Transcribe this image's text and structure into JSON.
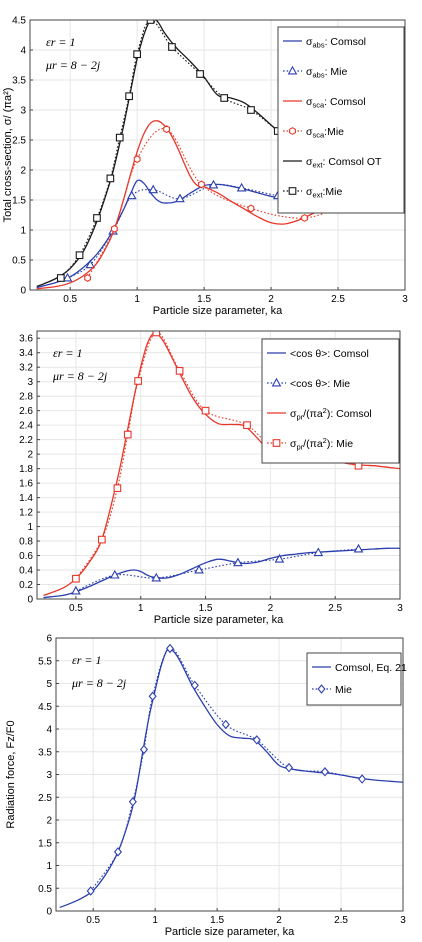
{
  "colors": {
    "black": "#1a1a1a",
    "blue": "#2b3fae",
    "red": "#e8372a",
    "grid": "#e6e6e6",
    "frame": "#444444"
  },
  "chart_data": [
    {
      "type": "line",
      "xlabel": "Particle size parameter, ka",
      "ylabel": "Total cross-section, σ/ (πa²)",
      "xlim": [
        0.2,
        3.0
      ],
      "ylim": [
        0,
        4.5
      ],
      "xticks": [
        "0.5",
        "1",
        "1.5",
        "2",
        "2.5",
        "3"
      ],
      "yticks": [
        "0",
        "0.5",
        "1",
        "1.5",
        "2",
        "2.5",
        "3",
        "3.5",
        "4",
        "4.5"
      ],
      "grid": true,
      "legend_position": "top-right",
      "annotations": [
        "εr = 1",
        "μr = 8 − 2j"
      ],
      "series": [
        {
          "name": "σabs: Comsol",
          "color": "blue",
          "style": "solid",
          "marker": "none",
          "x": [
            0.25,
            0.4,
            0.5,
            0.6,
            0.7,
            0.8,
            0.9,
            0.95,
            1.0,
            1.05,
            1.1,
            1.15,
            1.2,
            1.3,
            1.4,
            1.5,
            1.6,
            1.7,
            1.8,
            1.9,
            2.0,
            2.1,
            2.2,
            2.3,
            2.4,
            2.5,
            2.6,
            2.7,
            2.8,
            2.9,
            3.0
          ],
          "y": [
            0.04,
            0.13,
            0.22,
            0.38,
            0.6,
            0.92,
            1.35,
            1.6,
            1.82,
            1.78,
            1.62,
            1.5,
            1.45,
            1.48,
            1.62,
            1.74,
            1.76,
            1.73,
            1.68,
            1.62,
            1.56,
            1.52,
            1.49,
            1.46,
            1.44,
            1.41,
            1.39,
            1.37,
            1.36,
            1.35,
            1.34
          ]
        },
        {
          "name": "σabs: Mie",
          "color": "blue",
          "style": "dotted",
          "marker": "triangle",
          "x": [
            0.48,
            0.65,
            0.82,
            0.96,
            1.12,
            1.32,
            1.57,
            1.78,
            2.05,
            2.28,
            2.52,
            2.77
          ],
          "y": [
            0.2,
            0.42,
            0.98,
            1.57,
            1.67,
            1.52,
            1.75,
            1.7,
            1.57,
            1.49,
            1.42,
            1.37
          ]
        },
        {
          "name": "σsca: Comsol",
          "color": "red",
          "style": "solid",
          "marker": "none",
          "x": [
            0.25,
            0.4,
            0.5,
            0.6,
            0.7,
            0.8,
            0.85,
            0.9,
            0.95,
            1.0,
            1.05,
            1.1,
            1.15,
            1.2,
            1.25,
            1.3,
            1.35,
            1.4,
            1.45,
            1.5,
            1.6,
            1.7,
            1.8,
            1.9,
            2.0,
            2.1,
            2.2,
            2.3,
            2.4,
            2.5,
            2.6,
            2.7,
            2.8,
            2.9,
            3.0
          ],
          "y": [
            0.02,
            0.06,
            0.12,
            0.24,
            0.45,
            0.85,
            1.15,
            1.52,
            1.92,
            2.3,
            2.6,
            2.78,
            2.82,
            2.75,
            2.6,
            2.38,
            2.12,
            1.88,
            1.74,
            1.72,
            1.62,
            1.48,
            1.35,
            1.22,
            1.12,
            1.1,
            1.16,
            1.26,
            1.36,
            1.43,
            1.49,
            1.53,
            1.56,
            1.57,
            1.56
          ]
        },
        {
          "name": "σsca:Mie",
          "color": "red",
          "style": "dotted",
          "marker": "hexagon",
          "x": [
            0.63,
            0.83,
            1.0,
            1.22,
            1.48,
            1.85,
            2.25,
            2.58
          ],
          "y": [
            0.2,
            1.02,
            2.18,
            2.68,
            1.76,
            1.36,
            1.2,
            1.46
          ]
        },
        {
          "name": "σext: Comsol OT",
          "color": "black",
          "style": "solid",
          "marker": "none",
          "x": [
            0.25,
            0.3,
            0.4,
            0.5,
            0.6,
            0.7,
            0.8,
            0.85,
            0.9,
            0.95,
            1.0,
            1.05,
            1.1,
            1.15,
            1.2,
            1.25,
            1.3,
            1.4,
            1.5,
            1.6,
            1.7,
            1.8,
            1.9,
            2.0,
            2.05
          ],
          "y": [
            0.06,
            0.1,
            0.2,
            0.36,
            0.65,
            1.15,
            1.82,
            2.25,
            2.75,
            3.3,
            3.85,
            4.25,
            4.5,
            4.48,
            4.3,
            4.15,
            4.02,
            3.8,
            3.55,
            3.25,
            3.2,
            3.12,
            2.95,
            2.75,
            2.65
          ]
        },
        {
          "name": "σext:Mie",
          "color": "black",
          "style": "dotted",
          "marker": "square",
          "x": [
            0.43,
            0.57,
            0.7,
            0.8,
            0.87,
            0.94,
            1.0,
            1.1,
            1.26,
            1.47,
            1.65,
            1.85,
            2.05
          ],
          "y": [
            0.2,
            0.58,
            1.2,
            1.86,
            2.54,
            3.23,
            3.93,
            4.5,
            4.05,
            3.6,
            3.2,
            3.0,
            2.65
          ]
        }
      ]
    },
    {
      "type": "line",
      "xlabel": "Particle size parameter, ka",
      "ylabel": "",
      "xlim": [
        0.2,
        3.0
      ],
      "ylim": [
        0,
        3.7
      ],
      "xticks": [
        "0.5",
        "1",
        "1.5",
        "2",
        "2.5",
        "3"
      ],
      "yticks": [
        "0",
        "0.2",
        "0.4",
        "0.6",
        "0.8",
        "1",
        "1.2",
        "1.4",
        "1.6",
        "1.8",
        "2",
        "2.2",
        "2.4",
        "2.6",
        "2.8",
        "3",
        "3.2",
        "3.4",
        "3.6"
      ],
      "grid": true,
      "legend_position": "top-right",
      "annotations": [
        "εr = 1",
        "μr = 8 − 2j"
      ],
      "series": [
        {
          "name": "<cos θ>: Comsol",
          "color": "blue",
          "style": "solid",
          "marker": "none",
          "x": [
            0.25,
            0.4,
            0.5,
            0.6,
            0.7,
            0.8,
            0.9,
            0.95,
            1.0,
            1.05,
            1.1,
            1.2,
            1.3,
            1.4,
            1.5,
            1.6,
            1.7,
            1.8,
            1.9,
            2.0,
            2.1,
            2.2,
            2.3,
            2.4,
            2.5,
            2.6,
            2.7,
            2.8,
            2.9,
            3.0
          ],
          "y": [
            0.02,
            0.05,
            0.1,
            0.17,
            0.25,
            0.33,
            0.39,
            0.4,
            0.38,
            0.33,
            0.3,
            0.29,
            0.34,
            0.42,
            0.5,
            0.55,
            0.52,
            0.49,
            0.51,
            0.56,
            0.6,
            0.62,
            0.64,
            0.65,
            0.66,
            0.67,
            0.68,
            0.69,
            0.7,
            0.7
          ]
        },
        {
          "name": "<cos θ>: Mie",
          "color": "blue",
          "style": "dotted",
          "marker": "triangle",
          "x": [
            0.5,
            0.8,
            1.12,
            1.45,
            1.75,
            2.07,
            2.37,
            2.68
          ],
          "y": [
            0.11,
            0.33,
            0.29,
            0.4,
            0.5,
            0.55,
            0.64,
            0.69
          ]
        },
        {
          "name": "σpr/(πa²): Comsol",
          "color": "red",
          "style": "solid",
          "marker": "none",
          "x": [
            0.25,
            0.4,
            0.5,
            0.6,
            0.7,
            0.8,
            0.85,
            0.9,
            0.95,
            1.0,
            1.05,
            1.1,
            1.15,
            1.2,
            1.3,
            1.4,
            1.5,
            1.6,
            1.7,
            1.8,
            1.9,
            2.0,
            2.1,
            2.2,
            2.3,
            2.4,
            2.5,
            2.6,
            2.7,
            2.8,
            2.9,
            3.0
          ],
          "y": [
            0.05,
            0.15,
            0.28,
            0.5,
            0.82,
            1.5,
            1.9,
            2.35,
            2.8,
            3.2,
            3.52,
            3.67,
            3.62,
            3.48,
            3.12,
            2.78,
            2.55,
            2.42,
            2.41,
            2.39,
            2.22,
            2.03,
            1.98,
            1.96,
            1.94,
            1.92,
            1.9,
            1.87,
            1.85,
            1.84,
            1.82,
            1.8
          ]
        },
        {
          "name": "σpr/(πa²): Mie",
          "color": "red",
          "style": "dotted",
          "marker": "square",
          "x": [
            0.5,
            0.7,
            0.82,
            0.9,
            0.98,
            1.12,
            1.3,
            1.5,
            1.82,
            2.07,
            2.37,
            2.68
          ],
          "y": [
            0.28,
            0.82,
            1.53,
            2.27,
            3.01,
            3.68,
            3.15,
            2.6,
            2.4,
            2.0,
            1.94,
            1.84
          ]
        }
      ]
    },
    {
      "type": "line",
      "xlabel": "Particle size parameter, ka",
      "ylabel": "Radiation force, Fz/F0",
      "xlim": [
        0.2,
        3.0
      ],
      "ylim": [
        0,
        6
      ],
      "xticks": [
        "0.5",
        "1",
        "1.5",
        "2",
        "2.5",
        "3"
      ],
      "yticks": [
        "0",
        "0.5",
        "1",
        "1.5",
        "2",
        "2.5",
        "3",
        "3.5",
        "4",
        "4.5",
        "5",
        "5.5",
        "6"
      ],
      "grid": true,
      "legend_position": "top-right",
      "annotations": [
        "εr = 1",
        "μr = 8 − 2j"
      ],
      "series": [
        {
          "name": "Comsol, Eq. 21",
          "color": "blue",
          "style": "solid",
          "marker": "none",
          "x": [
            0.23,
            0.3,
            0.4,
            0.5,
            0.6,
            0.7,
            0.8,
            0.85,
            0.9,
            0.95,
            1.0,
            1.05,
            1.1,
            1.15,
            1.2,
            1.3,
            1.4,
            1.5,
            1.6,
            1.7,
            1.8,
            1.9,
            2.0,
            2.1,
            2.2,
            2.3,
            2.4,
            2.5,
            2.6,
            2.7,
            2.8,
            2.9,
            3.0
          ],
          "y": [
            0.08,
            0.15,
            0.27,
            0.45,
            0.8,
            1.3,
            2.1,
            2.7,
            3.5,
            4.25,
            4.85,
            5.4,
            5.75,
            5.7,
            5.5,
            4.95,
            4.5,
            4.1,
            3.85,
            3.8,
            3.76,
            3.5,
            3.2,
            3.12,
            3.08,
            3.05,
            3.03,
            2.99,
            2.94,
            2.9,
            2.87,
            2.85,
            2.83
          ]
        },
        {
          "name": "Mie",
          "color": "blue",
          "style": "dotted",
          "marker": "diamond",
          "x": [
            0.48,
            0.7,
            0.82,
            0.91,
            0.98,
            1.12,
            1.32,
            1.57,
            1.82,
            2.08,
            2.37,
            2.67
          ],
          "y": [
            0.44,
            1.3,
            2.4,
            3.55,
            4.72,
            5.77,
            4.96,
            4.1,
            3.76,
            3.15,
            3.06,
            2.9
          ]
        }
      ]
    }
  ]
}
